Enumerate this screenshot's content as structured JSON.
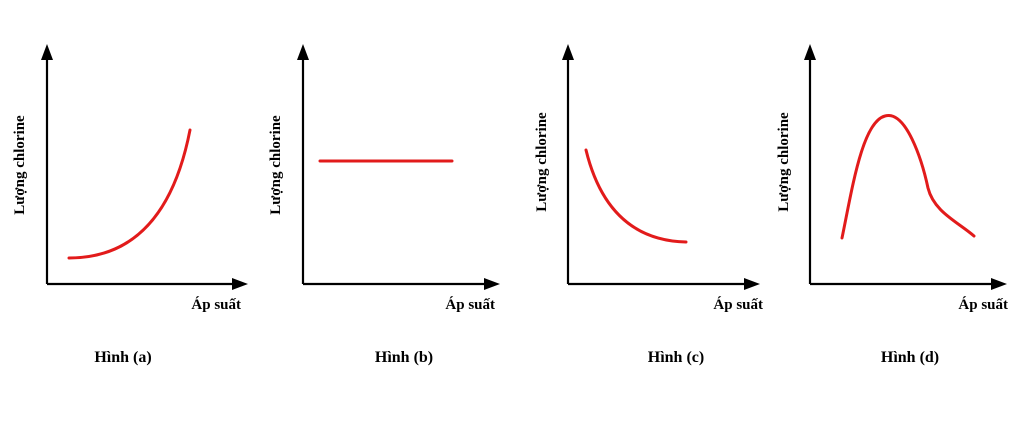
{
  "colors": {
    "curve": "#e21b1b",
    "axis": "#000000"
  },
  "panels": [
    {
      "ylabel": "Lượng chlorine",
      "xlabel": "Áp suất",
      "caption": "Hình (a)"
    },
    {
      "ylabel": "Lượng chlorine",
      "xlabel": "Áp suất",
      "caption": "Hình (b)"
    },
    {
      "ylabel": "Lượng chlorine",
      "xlabel": "Áp suất",
      "caption": "Hình (c)"
    },
    {
      "ylabel": "Lượng chlorine",
      "xlabel": "Áp suất",
      "caption": "Hình (d)"
    }
  ]
}
